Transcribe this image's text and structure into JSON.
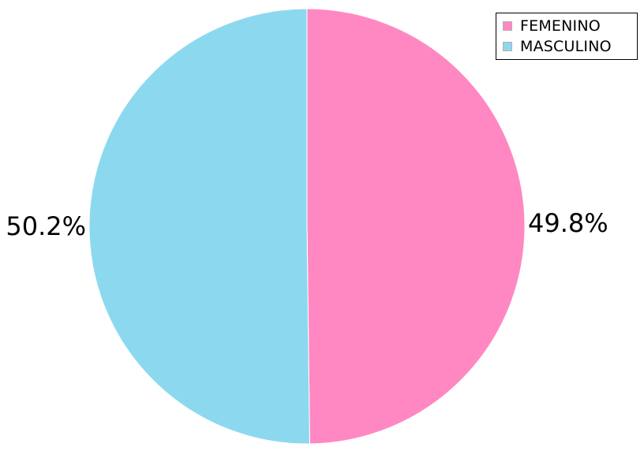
{
  "chart_data": {
    "type": "pie",
    "categories": [
      "FEMENINO",
      "MASCULINO"
    ],
    "values": [
      49.8,
      50.2
    ],
    "labels": [
      "49.8%",
      "50.2%"
    ],
    "colors": [
      "#ff88c2",
      "#8cd9ef"
    ],
    "start": "top",
    "direction": "clockwise",
    "legend": "top-right"
  }
}
